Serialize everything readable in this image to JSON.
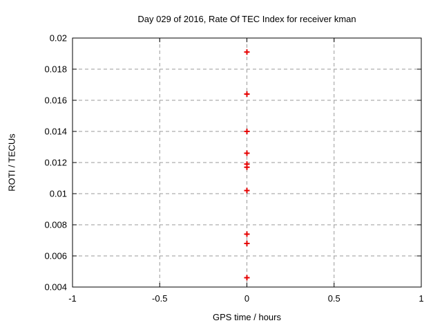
{
  "window": {
    "background": "#ffffff"
  },
  "chart_data": {
    "type": "scatter",
    "title": "Day 029 of 2016, Rate Of TEC Index for receiver kman",
    "xlabel": "GPS time / hours",
    "ylabel": "ROTI / TECUs",
    "xlim": [
      -1,
      1
    ],
    "ylim": [
      0.004,
      0.02
    ],
    "x_ticks": {
      "values": [
        -1,
        -0.5,
        0,
        0.5,
        1
      ],
      "labels": [
        "-1",
        "-0.5",
        "0",
        "0.5",
        "1"
      ]
    },
    "y_ticks": {
      "values": [
        0.004,
        0.006,
        0.008,
        0.01,
        0.012,
        0.014,
        0.016,
        0.018,
        0.02
      ],
      "labels": [
        "0.004",
        "0.006",
        "0.008",
        "0.01",
        "0.012",
        "0.014",
        "0.016",
        "0.018",
        "0.02"
      ]
    },
    "grid": true,
    "legend_position": "none",
    "marker": {
      "shape": "plus",
      "color": "#e60000",
      "size": 9,
      "stroke_width": 2
    },
    "series": [
      {
        "name": "ROTI",
        "x": [
          0,
          0,
          0,
          0,
          0,
          0,
          0,
          0,
          0,
          0
        ],
        "y": [
          0.0191,
          0.0164,
          0.014,
          0.0126,
          0.0119,
          0.0117,
          0.0102,
          0.0074,
          0.0068,
          0.0046
        ]
      }
    ],
    "colors": {
      "grid": "#999999",
      "axis": "#000000",
      "text": "#000000",
      "background": "#ffffff"
    }
  }
}
